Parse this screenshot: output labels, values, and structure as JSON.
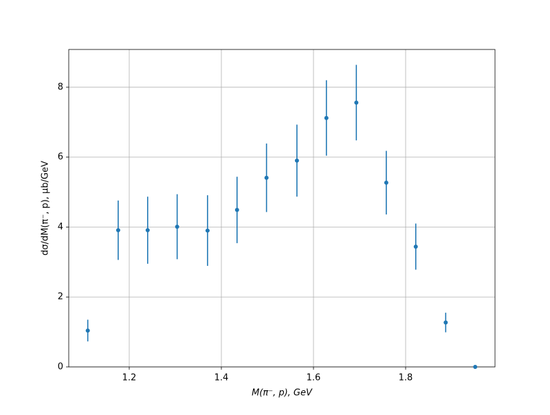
{
  "chart_data": {
    "type": "errorbar",
    "xlabel": "M(π⁻, p), GeV",
    "ylabel": "dσ/dM(π⁻, p), μb/GeV",
    "x": [
      1.11,
      1.176,
      1.24,
      1.304,
      1.37,
      1.434,
      1.498,
      1.564,
      1.628,
      1.693,
      1.758,
      1.822,
      1.887,
      1.951
    ],
    "values": [
      1.04,
      3.91,
      3.91,
      4.01,
      3.9,
      4.49,
      5.41,
      5.9,
      7.12,
      7.56,
      5.27,
      3.44,
      1.27,
      0
    ],
    "errors": [
      0.31,
      0.85,
      0.96,
      0.93,
      1.01,
      0.95,
      0.98,
      1.03,
      1.08,
      1.08,
      0.91,
      0.66,
      0.28,
      0
    ],
    "color": "#1f77b4",
    "xlim": [
      1.0687,
      1.994
    ],
    "xticks": [
      1.2,
      1.4,
      1.6,
      1.8
    ],
    "ylim": [
      0,
      9.08
    ],
    "yticks": [
      0,
      2,
      4,
      6,
      8
    ],
    "grid": true
  }
}
